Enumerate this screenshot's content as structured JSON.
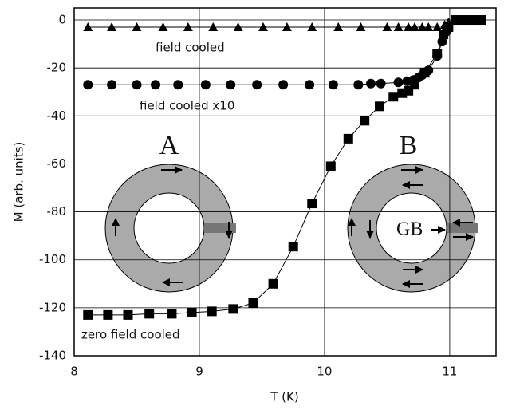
{
  "chart_data": {
    "type": "scatter",
    "xlabel": "T (K)",
    "ylabel": "M (arb. units)",
    "xlim": [
      8,
      11.37
    ],
    "ylim": [
      -140,
      5
    ],
    "xticks": [
      8,
      9,
      10,
      11
    ],
    "yticks": [
      0,
      -20,
      -40,
      -60,
      -80,
      -100,
      -120,
      -140
    ],
    "grid": true,
    "connect_points": true,
    "annotations": [
      "A",
      "B",
      "GB"
    ],
    "series": [
      {
        "name": "field cooled",
        "color": "#000000",
        "marker": "triangle",
        "x": [
          8.11,
          8.3,
          8.5,
          8.71,
          8.91,
          9.11,
          9.31,
          9.51,
          9.7,
          9.9,
          10.11,
          10.29,
          10.5,
          10.59,
          10.67,
          10.72,
          10.78,
          10.83,
          10.9,
          10.96,
          10.99,
          11.05,
          11.17,
          11.25
        ],
        "values": [
          -3,
          -3,
          -3,
          -3,
          -3,
          -3,
          -3,
          -3,
          -3,
          -3,
          -3,
          -3,
          -3,
          -3,
          -3,
          -3,
          -3,
          -3,
          -3,
          -2,
          -1,
          0,
          0,
          0
        ]
      },
      {
        "name": "field cooled x10",
        "color": "#000000",
        "marker": "circle",
        "x": [
          8.11,
          8.3,
          8.5,
          8.65,
          8.83,
          9.05,
          9.25,
          9.46,
          9.67,
          9.88,
          10.07,
          10.27,
          10.37,
          10.45,
          10.59,
          10.66,
          10.71,
          10.75,
          10.78,
          10.83,
          10.9,
          10.94,
          10.97,
          11.05,
          11.17,
          11.25
        ],
        "values": [
          -27,
          -27,
          -27,
          -27,
          -27,
          -27,
          -27,
          -27,
          -27,
          -27,
          -27,
          -27,
          -26.5,
          -26.5,
          -26,
          -25.5,
          -25,
          -24,
          -23,
          -21,
          -15,
          -9,
          -5,
          0,
          0,
          0
        ]
      },
      {
        "name": "zero field cooled",
        "color": "#000000",
        "marker": "square",
        "x": [
          8.11,
          8.27,
          8.43,
          8.6,
          8.78,
          8.94,
          9.1,
          9.27,
          9.43,
          9.59,
          9.75,
          9.9,
          10.05,
          10.19,
          10.32,
          10.44,
          10.55,
          10.62,
          10.67,
          10.72,
          10.8,
          10.9,
          10.95,
          10.99,
          11.05,
          11.11,
          11.18,
          11.25
        ],
        "values": [
          -123,
          -123,
          -123,
          -122.5,
          -122.5,
          -122,
          -121.5,
          -120.5,
          -118,
          -110,
          -94.5,
          -76.5,
          -61,
          -49.5,
          -42,
          -36,
          -32,
          -30.5,
          -29.5,
          -27,
          -22,
          -14,
          -6,
          -3,
          0,
          0,
          0,
          0
        ]
      }
    ]
  }
}
